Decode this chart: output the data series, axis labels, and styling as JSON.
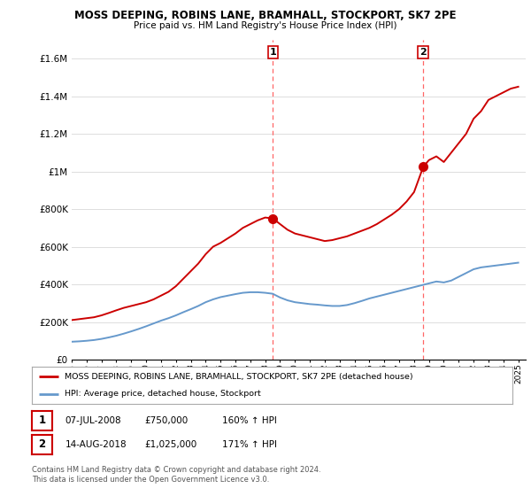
{
  "title": "MOSS DEEPING, ROBINS LANE, BRAMHALL, STOCKPORT, SK7 2PE",
  "subtitle": "Price paid vs. HM Land Registry's House Price Index (HPI)",
  "legend_label_red": "MOSS DEEPING, ROBINS LANE, BRAMHALL, STOCKPORT, SK7 2PE (detached house)",
  "legend_label_blue": "HPI: Average price, detached house, Stockport",
  "annotation1_label": "1",
  "annotation1_date": "07-JUL-2008",
  "annotation1_price": "£750,000",
  "annotation1_hpi": "160% ↑ HPI",
  "annotation2_label": "2",
  "annotation2_date": "14-AUG-2018",
  "annotation2_price": "£1,025,000",
  "annotation2_hpi": "171% ↑ HPI",
  "footer": "Contains HM Land Registry data © Crown copyright and database right 2024.\nThis data is licensed under the Open Government Licence v3.0.",
  "ylim": [
    0,
    1700000
  ],
  "yticks": [
    0,
    200000,
    400000,
    600000,
    800000,
    1000000,
    1200000,
    1400000,
    1600000
  ],
  "ytick_labels": [
    "£0",
    "£200K",
    "£400K",
    "£600K",
    "£800K",
    "£1M",
    "£1.2M",
    "£1.4M",
    "£1.6M"
  ],
  "xlim_start": 1995.0,
  "xlim_end": 2025.5,
  "xticks": [
    1995,
    1996,
    1997,
    1998,
    1999,
    2000,
    2001,
    2002,
    2003,
    2004,
    2005,
    2006,
    2007,
    2008,
    2009,
    2010,
    2011,
    2012,
    2013,
    2014,
    2015,
    2016,
    2017,
    2018,
    2019,
    2020,
    2021,
    2022,
    2023,
    2024,
    2025
  ],
  "vline1_x": 2008.52,
  "vline2_x": 2018.62,
  "point1_x": 2008.52,
  "point1_y": 750000,
  "point2_x": 2018.62,
  "point2_y": 1025000,
  "red_color": "#CC0000",
  "blue_color": "#6699CC",
  "vline_color": "#FF6666",
  "background_color": "#FFFFFF",
  "grid_color": "#DDDDDD",
  "red_line_data_x": [
    1995.0,
    1995.5,
    1996.0,
    1996.5,
    1997.0,
    1997.5,
    1998.0,
    1998.5,
    1999.0,
    1999.5,
    2000.0,
    2000.5,
    2001.0,
    2001.5,
    2002.0,
    2002.5,
    2003.0,
    2003.5,
    2004.0,
    2004.5,
    2005.0,
    2005.5,
    2006.0,
    2006.5,
    2007.0,
    2007.5,
    2008.0,
    2008.52,
    2009.0,
    2009.5,
    2010.0,
    2010.5,
    2011.0,
    2011.5,
    2012.0,
    2012.5,
    2013.0,
    2013.5,
    2014.0,
    2014.5,
    2015.0,
    2015.5,
    2016.0,
    2016.5,
    2017.0,
    2017.5,
    2018.0,
    2018.62,
    2019.0,
    2019.5,
    2020.0,
    2020.5,
    2021.0,
    2021.5,
    2022.0,
    2022.5,
    2023.0,
    2023.5,
    2024.0,
    2024.5,
    2025.0
  ],
  "red_line_data_y": [
    210000,
    215000,
    220000,
    225000,
    235000,
    248000,
    262000,
    275000,
    285000,
    295000,
    305000,
    320000,
    340000,
    360000,
    390000,
    430000,
    470000,
    510000,
    560000,
    600000,
    620000,
    645000,
    670000,
    700000,
    720000,
    740000,
    755000,
    750000,
    720000,
    690000,
    670000,
    660000,
    650000,
    640000,
    630000,
    635000,
    645000,
    655000,
    670000,
    685000,
    700000,
    720000,
    745000,
    770000,
    800000,
    840000,
    890000,
    1025000,
    1060000,
    1080000,
    1050000,
    1100000,
    1150000,
    1200000,
    1280000,
    1320000,
    1380000,
    1400000,
    1420000,
    1440000,
    1450000
  ],
  "blue_line_data_x": [
    1995.0,
    1995.5,
    1996.0,
    1996.5,
    1997.0,
    1997.5,
    1998.0,
    1998.5,
    1999.0,
    1999.5,
    2000.0,
    2000.5,
    2001.0,
    2001.5,
    2002.0,
    2002.5,
    2003.0,
    2003.5,
    2004.0,
    2004.5,
    2005.0,
    2005.5,
    2006.0,
    2006.5,
    2007.0,
    2007.5,
    2008.0,
    2008.5,
    2009.0,
    2009.5,
    2010.0,
    2010.5,
    2011.0,
    2011.5,
    2012.0,
    2012.5,
    2013.0,
    2013.5,
    2014.0,
    2014.5,
    2015.0,
    2015.5,
    2016.0,
    2016.5,
    2017.0,
    2017.5,
    2018.0,
    2018.5,
    2019.0,
    2019.5,
    2020.0,
    2020.5,
    2021.0,
    2021.5,
    2022.0,
    2022.5,
    2023.0,
    2023.5,
    2024.0,
    2024.5,
    2025.0
  ],
  "blue_line_data_y": [
    95000,
    97000,
    100000,
    104000,
    110000,
    118000,
    127000,
    138000,
    150000,
    163000,
    177000,
    192000,
    207000,
    220000,
    235000,
    252000,
    268000,
    285000,
    305000,
    320000,
    332000,
    340000,
    348000,
    355000,
    358000,
    358000,
    355000,
    350000,
    330000,
    315000,
    305000,
    300000,
    295000,
    292000,
    288000,
    285000,
    285000,
    290000,
    300000,
    312000,
    325000,
    335000,
    345000,
    355000,
    365000,
    375000,
    385000,
    395000,
    405000,
    415000,
    410000,
    420000,
    440000,
    460000,
    480000,
    490000,
    495000,
    500000,
    505000,
    510000,
    515000
  ]
}
